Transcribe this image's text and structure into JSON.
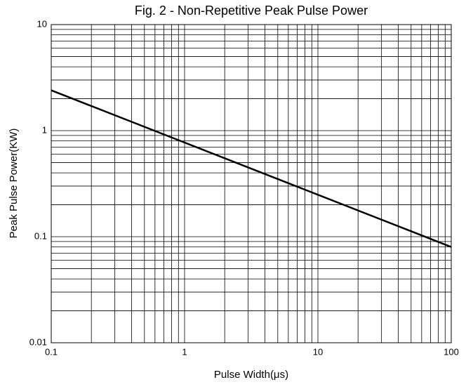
{
  "chart_data": {
    "type": "line",
    "title": "Fig. 2 - Non-Repetitive Peak Pulse Power",
    "xlabel": "Pulse Width(μs)",
    "ylabel": "Peak Pulse Power(KW)",
    "x": [
      0.1,
      100
    ],
    "values": [
      2.4,
      0.08
    ],
    "color": "#000000",
    "xlim": [
      0.1,
      100
    ],
    "xticks": [
      0.1,
      1,
      10,
      100
    ],
    "ylim": [
      0.01,
      10
    ],
    "yticks": [
      0.01,
      0.1,
      1,
      10
    ],
    "xscale": "log",
    "yscale": "log",
    "grid": true,
    "minor_grid": true
  }
}
